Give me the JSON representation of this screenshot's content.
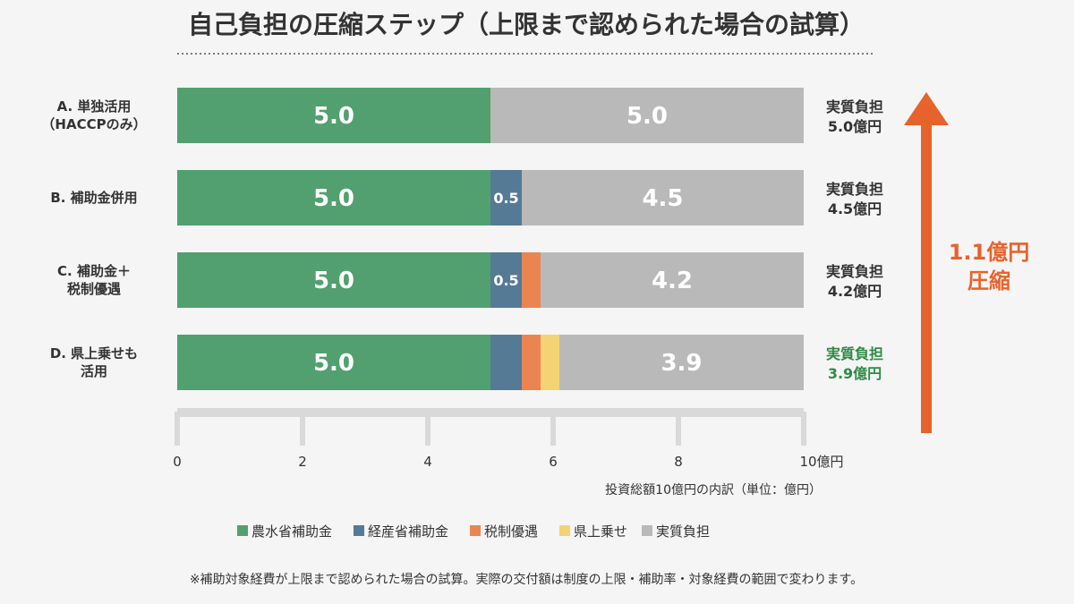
{
  "title": "自己負担の圧縮ステップ（上限まで認められた場合の試算）",
  "chart_data": {
    "type": "bar",
    "orientation": "horizontal",
    "stacked": true,
    "categories": [
      [
        "A. 単独活用",
        "（HACCPのみ）"
      ],
      [
        "B. 補助金併用"
      ],
      [
        "C. 補助金＋",
        "税制優遇"
      ],
      [
        "D. 県上乗せも",
        "活用"
      ]
    ],
    "series": [
      {
        "name": "農水省補助金",
        "color": "#52a06f",
        "values": [
          5.0,
          5.0,
          5.0,
          5.0
        ],
        "labels": [
          "5.0",
          "5.0",
          "5.0",
          "5.0"
        ]
      },
      {
        "name": "経産省補助金",
        "color": "#557a96",
        "values": [
          0,
          0.5,
          0.5,
          0.5
        ],
        "labels": [
          "",
          "0.5",
          "0.5",
          ""
        ]
      },
      {
        "name": "税制優遇",
        "color": "#ea8552",
        "values": [
          0,
          0,
          0.3,
          0.3
        ],
        "labels": [
          "",
          "",
          "",
          ""
        ]
      },
      {
        "name": "県上乗せ",
        "color": "#f5d272",
        "values": [
          0,
          0,
          0,
          0.3
        ],
        "labels": [
          "",
          "",
          "",
          ""
        ]
      },
      {
        "name": "実質負担",
        "color": "#b9b9b9",
        "values": [
          5.0,
          4.5,
          4.2,
          3.9
        ],
        "labels": [
          "5.0",
          "4.5",
          "4.2",
          "3.9"
        ]
      }
    ],
    "effective_labels": [
      [
        "実質負担",
        "5.0億円"
      ],
      [
        "実質負担",
        "4.5億円"
      ],
      [
        "実質負担",
        "4.2億円"
      ],
      [
        "実質負担",
        "3.9億円"
      ]
    ],
    "highlight_index": 3,
    "highlight_color": "#2e8b45",
    "xlim": [
      0,
      10
    ],
    "xticks": [
      "0",
      "2",
      "4",
      "6",
      "8",
      "10億円"
    ],
    "xlabel": "投資総額10億円の内訳（単位：億円）",
    "legend_position": "bottom",
    "annotation": {
      "text": [
        "1.1億円",
        "圧縮"
      ],
      "color": "#e8622b"
    }
  },
  "footnote": "※補助対象経費が上限まで認められた場合の試算。実際の交付額は制度の上限・補助率・対象経費の範囲で変わります。"
}
